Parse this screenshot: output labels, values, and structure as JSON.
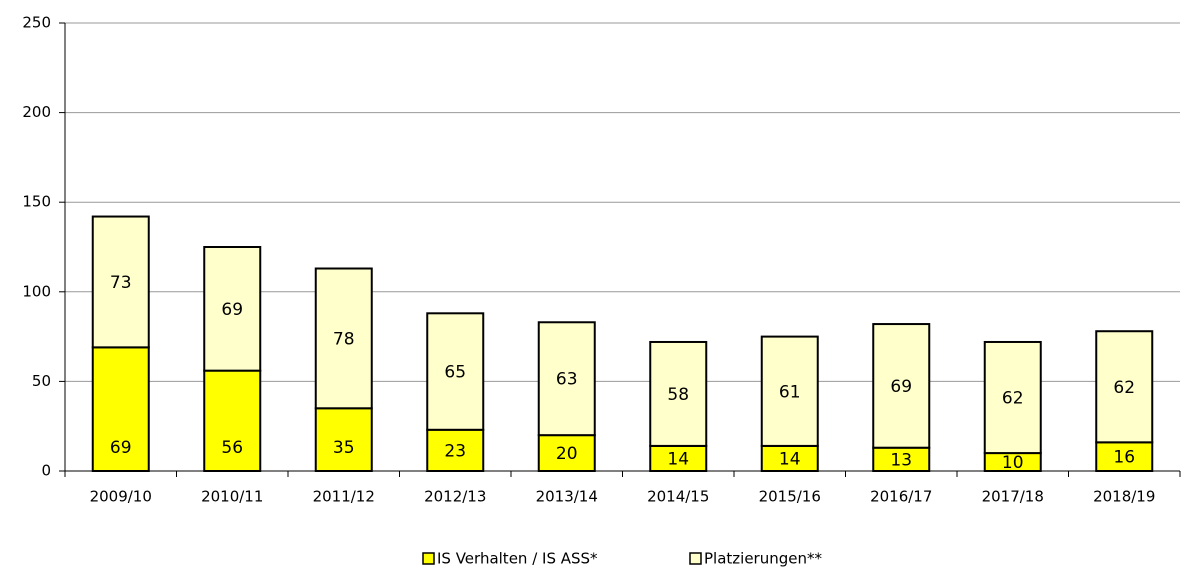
{
  "chart_data": {
    "type": "stacked-bar",
    "categories": [
      "2009/10",
      "2010/11",
      "2011/12",
      "2012/13",
      "2013/14",
      "2014/15",
      "2015/16",
      "2016/17",
      "2017/18",
      "2018/19"
    ],
    "series": [
      {
        "name": "IS Verhalten / IS ASS*",
        "color": "#ffff00",
        "values": [
          69,
          56,
          35,
          23,
          20,
          14,
          14,
          13,
          10,
          16
        ]
      },
      {
        "name": "Platzierungen**",
        "color": "#ffffcc",
        "values": [
          73,
          69,
          78,
          65,
          63,
          58,
          61,
          69,
          62,
          62
        ]
      }
    ],
    "ylim": [
      0,
      250
    ],
    "yticks": [
      0,
      50,
      100,
      150,
      200,
      250
    ],
    "grid": true,
    "legend": "bottom"
  }
}
